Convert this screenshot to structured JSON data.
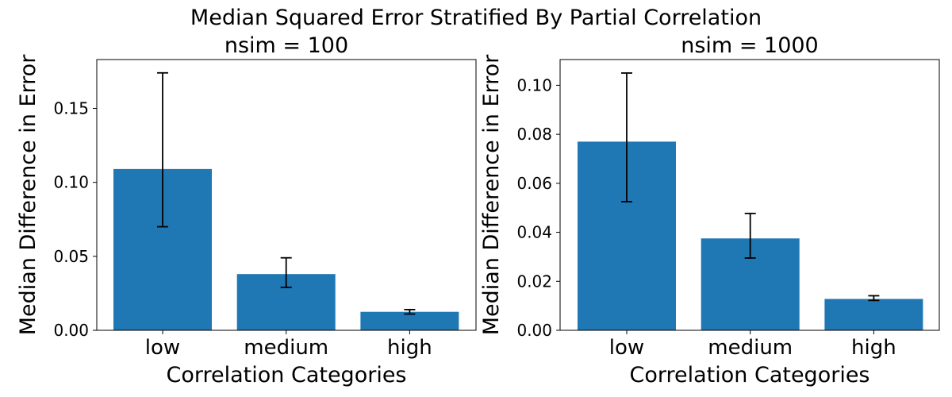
{
  "figure": {
    "suptitle": "Median Squared Error Stratified By Partial Correlation"
  },
  "colors": {
    "bar": "#1f77b4",
    "error_bar": "#000000",
    "axis": "#000000",
    "background": "#ffffff"
  },
  "chart_data": [
    {
      "type": "bar",
      "title": "nsim = 100",
      "xlabel": "Correlation Categories",
      "ylabel": "Median Difference in Error",
      "categories": [
        "low",
        "medium",
        "high"
      ],
      "values": [
        0.109,
        0.038,
        0.0125
      ],
      "error_low": [
        0.07,
        0.029,
        0.011
      ],
      "error_high": [
        0.174,
        0.049,
        0.014
      ],
      "ylim": [
        0,
        0.183
      ],
      "yticks": [
        0.0,
        0.05,
        0.1,
        0.15
      ],
      "ytick_labels": [
        "0.00",
        "0.05",
        "0.10",
        "0.15"
      ],
      "grid": false,
      "legend": "none"
    },
    {
      "type": "bar",
      "title": "nsim = 1000",
      "xlabel": "Correlation Categories",
      "ylabel": "Median Difference in Error",
      "categories": [
        "low",
        "medium",
        "high"
      ],
      "values": [
        0.077,
        0.0375,
        0.0128
      ],
      "error_low": [
        0.0525,
        0.0295,
        0.0122
      ],
      "error_high": [
        0.105,
        0.0477,
        0.0141
      ],
      "ylim": [
        0,
        0.1105
      ],
      "yticks": [
        0.0,
        0.02,
        0.04,
        0.06,
        0.08,
        0.1
      ],
      "ytick_labels": [
        "0.00",
        "0.02",
        "0.04",
        "0.06",
        "0.08",
        "0.10"
      ],
      "grid": false,
      "legend": "none"
    }
  ]
}
